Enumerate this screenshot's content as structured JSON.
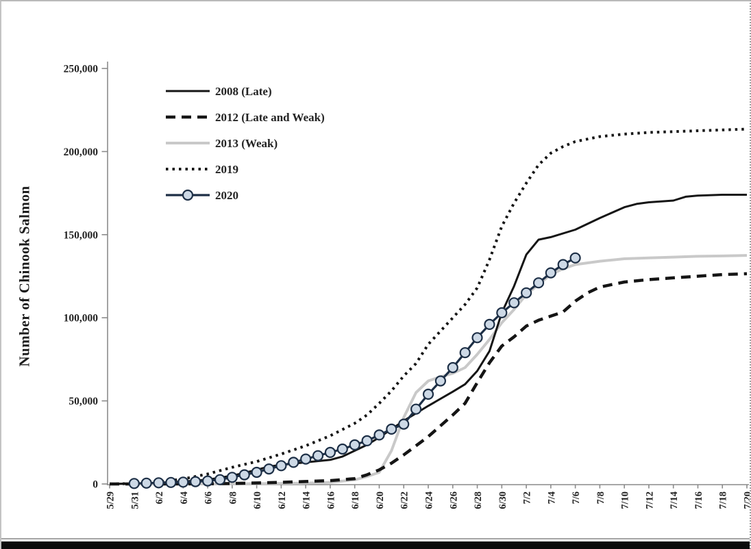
{
  "figure": {
    "border_color": "#b9b9b9",
    "bottom_bar_color": "#0b0b0b",
    "background": "#ffffff"
  },
  "chart_data": {
    "type": "line",
    "title": "",
    "xlabel": "",
    "ylabel": "Number of Chinook Salmon",
    "ylim": [
      0,
      250000
    ],
    "xlim_days": [
      0,
      52
    ],
    "grid": false,
    "legend_position": "upper-left-inside",
    "axis_color": "#8a8a8a",
    "text_color": "#232323",
    "y_tick_values": [
      0,
      50000,
      100000,
      150000,
      200000,
      250000
    ],
    "y_tick_labels": [
      "0",
      "50,000",
      "100,000",
      "150,000",
      "200,000",
      "250,000"
    ],
    "x_tick_days": [
      0,
      2,
      4,
      6,
      8,
      10,
      12,
      14,
      16,
      18,
      20,
      22,
      24,
      26,
      28,
      30,
      32,
      34,
      36,
      38,
      40,
      42,
      44,
      46,
      48,
      50,
      52
    ],
    "x_tick_labels": [
      "5/29",
      "5/31",
      "6/2",
      "6/4",
      "6/6",
      "6/8",
      "6/10",
      "6/12",
      "6/14",
      "6/16",
      "6/18",
      "6/20",
      "6/22",
      "6/24",
      "6/26",
      "6/28",
      "6/30",
      "7/2",
      "7/4",
      "7/6",
      "7/8",
      "7/10",
      "7/12",
      "7/14",
      "7/16",
      "7/18",
      "7/20"
    ],
    "series": [
      {
        "name": "2008 (Late)",
        "line_style": "solid",
        "color": "#151515",
        "width": 3,
        "points": [
          [
            0,
            0
          ],
          [
            2,
            300
          ],
          [
            4,
            800
          ],
          [
            6,
            1500
          ],
          [
            8,
            2600
          ],
          [
            10,
            5000
          ],
          [
            12,
            8500
          ],
          [
            13,
            10500
          ],
          [
            14,
            11500
          ],
          [
            16,
            13000
          ],
          [
            18,
            14500
          ],
          [
            19,
            16500
          ],
          [
            20,
            20000
          ],
          [
            21,
            23500
          ],
          [
            22,
            28000
          ],
          [
            24,
            38000
          ],
          [
            26,
            47000
          ],
          [
            28,
            55500
          ],
          [
            29,
            60000
          ],
          [
            30,
            68000
          ],
          [
            31,
            80000
          ],
          [
            32,
            103000
          ],
          [
            33,
            119000
          ],
          [
            34,
            138000
          ],
          [
            35,
            147000
          ],
          [
            36,
            148500
          ],
          [
            38,
            153000
          ],
          [
            40,
            160000
          ],
          [
            42,
            166500
          ],
          [
            43,
            168500
          ],
          [
            44,
            169500
          ],
          [
            46,
            170500
          ],
          [
            47,
            172800
          ],
          [
            48,
            173500
          ],
          [
            50,
            174000
          ],
          [
            52,
            174000
          ]
        ]
      },
      {
        "name": "2012 (Late and Weak)",
        "line_style": "dashed",
        "color": "#151515",
        "width": 4.5,
        "points": [
          [
            0,
            0
          ],
          [
            4,
            0
          ],
          [
            8,
            100
          ],
          [
            10,
            300
          ],
          [
            12,
            600
          ],
          [
            14,
            1000
          ],
          [
            16,
            1500
          ],
          [
            18,
            2000
          ],
          [
            20,
            3200
          ],
          [
            21,
            5500
          ],
          [
            22,
            8500
          ],
          [
            23,
            12500
          ],
          [
            24,
            17500
          ],
          [
            25,
            23000
          ],
          [
            26,
            28500
          ],
          [
            27,
            35000
          ],
          [
            28,
            41500
          ],
          [
            29,
            48500
          ],
          [
            30,
            61000
          ],
          [
            31,
            73000
          ],
          [
            32,
            83000
          ],
          [
            33,
            88500
          ],
          [
            34,
            95000
          ],
          [
            35,
            98500
          ],
          [
            36,
            101000
          ],
          [
            37,
            103500
          ],
          [
            38,
            110000
          ],
          [
            39,
            115000
          ],
          [
            40,
            118500
          ],
          [
            42,
            121500
          ],
          [
            44,
            123000
          ],
          [
            46,
            124000
          ],
          [
            48,
            125000
          ],
          [
            50,
            126000
          ],
          [
            52,
            126500
          ]
        ]
      },
      {
        "name": "2013 (Weak)",
        "line_style": "solid",
        "color": "#c9c9c9",
        "width": 4,
        "points": [
          [
            0,
            0
          ],
          [
            8,
            0
          ],
          [
            12,
            200
          ],
          [
            16,
            500
          ],
          [
            18,
            1000
          ],
          [
            20,
            2500
          ],
          [
            21,
            4500
          ],
          [
            22,
            7000
          ],
          [
            23,
            20000
          ],
          [
            24,
            40000
          ],
          [
            25,
            55000
          ],
          [
            26,
            62000
          ],
          [
            27,
            64500
          ],
          [
            28,
            66500
          ],
          [
            29,
            70000
          ],
          [
            30,
            78000
          ],
          [
            31,
            87000
          ],
          [
            32,
            97000
          ],
          [
            33,
            105000
          ],
          [
            34,
            114000
          ],
          [
            35,
            120000
          ],
          [
            36,
            126000
          ],
          [
            37,
            129500
          ],
          [
            38,
            132000
          ],
          [
            40,
            134000
          ],
          [
            42,
            135500
          ],
          [
            44,
            136000
          ],
          [
            46,
            136500
          ],
          [
            48,
            137000
          ],
          [
            50,
            137200
          ],
          [
            52,
            137500
          ]
        ]
      },
      {
        "name": "2019",
        "line_style": "dotted",
        "color": "#151515",
        "width": 4,
        "points": [
          [
            0,
            0
          ],
          [
            2,
            300
          ],
          [
            4,
            1200
          ],
          [
            6,
            3000
          ],
          [
            8,
            6000
          ],
          [
            10,
            10000
          ],
          [
            12,
            13500
          ],
          [
            14,
            18000
          ],
          [
            16,
            23000
          ],
          [
            18,
            29000
          ],
          [
            20,
            36500
          ],
          [
            21,
            41500
          ],
          [
            22,
            48500
          ],
          [
            23,
            56000
          ],
          [
            24,
            65000
          ],
          [
            25,
            72500
          ],
          [
            26,
            84000
          ],
          [
            27,
            92000
          ],
          [
            28,
            100000
          ],
          [
            29,
            108000
          ],
          [
            30,
            118000
          ],
          [
            31,
            135000
          ],
          [
            32,
            155000
          ],
          [
            33,
            169000
          ],
          [
            34,
            181000
          ],
          [
            35,
            192000
          ],
          [
            36,
            199000
          ],
          [
            37,
            203000
          ],
          [
            38,
            206000
          ],
          [
            40,
            209000
          ],
          [
            42,
            210500
          ],
          [
            44,
            211500
          ],
          [
            46,
            212000
          ],
          [
            48,
            212500
          ],
          [
            50,
            213000
          ],
          [
            52,
            213500
          ]
        ]
      },
      {
        "name": "2020",
        "line_style": "solid",
        "color": "#1d2f46",
        "width": 3.2,
        "marker": "circle",
        "marker_fill": "#cdd9e6",
        "marker_stroke": "#1d2f46",
        "marker_radius": 7,
        "points": [
          [
            2,
            300
          ],
          [
            3,
            500
          ],
          [
            4,
            700
          ],
          [
            5,
            900
          ],
          [
            6,
            1100
          ],
          [
            7,
            1400
          ],
          [
            8,
            1800
          ],
          [
            9,
            2600
          ],
          [
            10,
            4000
          ],
          [
            11,
            5500
          ],
          [
            12,
            7000
          ],
          [
            13,
            9000
          ],
          [
            14,
            11000
          ],
          [
            15,
            13000
          ],
          [
            16,
            15000
          ],
          [
            17,
            17000
          ],
          [
            18,
            19000
          ],
          [
            19,
            21000
          ],
          [
            20,
            23500
          ],
          [
            21,
            26000
          ],
          [
            22,
            29500
          ],
          [
            23,
            33000
          ],
          [
            24,
            36000
          ],
          [
            25,
            45000
          ],
          [
            26,
            54000
          ],
          [
            27,
            62000
          ],
          [
            28,
            70000
          ],
          [
            29,
            79000
          ],
          [
            30,
            88000
          ],
          [
            31,
            96000
          ],
          [
            32,
            103000
          ],
          [
            33,
            109000
          ],
          [
            34,
            115000
          ],
          [
            35,
            121000
          ],
          [
            36,
            127000
          ],
          [
            37,
            132000
          ],
          [
            38,
            136000
          ]
        ]
      }
    ]
  }
}
